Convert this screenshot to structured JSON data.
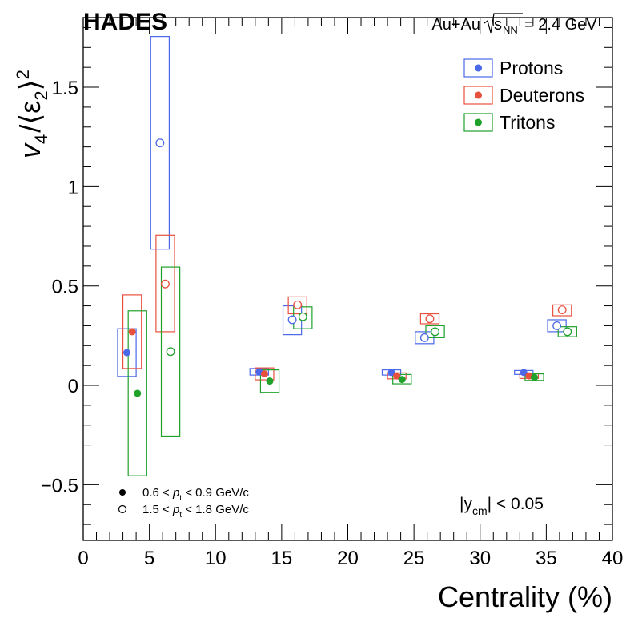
{
  "chart_data": {
    "type": "scatter",
    "experiment": "HADES",
    "system": "Au+Au",
    "energy_label": "= 2.4 GeV",
    "energy_symbol": "s",
    "energy_sub": "NN",
    "xlabel": "Centrality (%)",
    "ylabel_parts": {
      "v": "v",
      "v_sub": "4",
      "slash": "/",
      "eps": "⟨ε",
      "eps_sub": "2",
      "close": "⟩",
      "sup": "2"
    },
    "xlim": [
      0,
      40
    ],
    "ylim": [
      -0.78,
      1.85
    ],
    "x_ticks": [
      0,
      5,
      10,
      15,
      20,
      25,
      30,
      35,
      40
    ],
    "x_tick_labels": [
      "0",
      "5",
      "10",
      "15",
      "20",
      "25",
      "30",
      "35",
      "40"
    ],
    "y_ticks": [
      -0.5,
      0,
      0.5,
      1,
      1.5
    ],
    "y_tick_labels": [
      "−0.5",
      "0",
      "0.5",
      "1",
      "1.5"
    ],
    "rapidity_label": "|y",
    "rapidity_sub": "cm",
    "rapidity_rest": "| < 0.05",
    "pt_legend": [
      {
        "marker": "filled",
        "low": "0.6 < ",
        "var": "p",
        "sub": "t",
        "high": " < 0.9 GeV/c"
      },
      {
        "marker": "open",
        "low": "1.5 < ",
        "var": "p",
        "sub": "t",
        "high": " < 1.8 GeV/c"
      }
    ],
    "legend_position": "top-right",
    "series": [
      {
        "name": "Protons",
        "color": "#4a68e8",
        "low_pt": [
          {
            "x": 3.3,
            "y": 0.165,
            "sys_low": 0.045,
            "sys_high": 0.285
          },
          {
            "x": 13.3,
            "y": 0.068,
            "sys_low": 0.052,
            "sys_high": 0.085
          },
          {
            "x": 23.3,
            "y": 0.065,
            "sys_low": 0.052,
            "sys_high": 0.078
          },
          {
            "x": 33.3,
            "y": 0.065,
            "sys_low": 0.055,
            "sys_high": 0.075
          }
        ],
        "high_pt": [
          {
            "x": 5.8,
            "y": 1.22,
            "sys_low": 0.685,
            "sys_high": 1.755
          },
          {
            "x": 15.8,
            "y": 0.33,
            "sys_low": 0.255,
            "sys_high": 0.4
          },
          {
            "x": 25.8,
            "y": 0.24,
            "sys_low": 0.21,
            "sys_high": 0.27
          },
          {
            "x": 35.8,
            "y": 0.3,
            "sys_low": 0.27,
            "sys_high": 0.33
          }
        ]
      },
      {
        "name": "Deuterons",
        "color": "#e8503e",
        "low_pt": [
          {
            "x": 3.7,
            "y": 0.27,
            "sys_low": 0.085,
            "sys_high": 0.455
          },
          {
            "x": 13.7,
            "y": 0.058,
            "sys_low": 0.028,
            "sys_high": 0.088
          },
          {
            "x": 23.7,
            "y": 0.048,
            "sys_low": 0.033,
            "sys_high": 0.063
          },
          {
            "x": 33.7,
            "y": 0.048,
            "sys_low": 0.035,
            "sys_high": 0.061
          }
        ],
        "high_pt": [
          {
            "x": 6.2,
            "y": 0.51,
            "sys_low": 0.27,
            "sys_high": 0.755
          },
          {
            "x": 16.2,
            "y": 0.405,
            "sys_low": 0.36,
            "sys_high": 0.445
          },
          {
            "x": 26.2,
            "y": 0.335,
            "sys_low": 0.31,
            "sys_high": 0.36
          },
          {
            "x": 36.2,
            "y": 0.38,
            "sys_low": 0.35,
            "sys_high": 0.405
          }
        ]
      },
      {
        "name": "Tritons",
        "color": "#1fa12a",
        "low_pt": [
          {
            "x": 4.1,
            "y": -0.04,
            "sys_low": -0.455,
            "sys_high": 0.375
          },
          {
            "x": 14.1,
            "y": 0.022,
            "sys_low": -0.035,
            "sys_high": 0.078
          },
          {
            "x": 24.1,
            "y": 0.03,
            "sys_low": 0.008,
            "sys_high": 0.055
          },
          {
            "x": 34.1,
            "y": 0.04,
            "sys_low": 0.025,
            "sys_high": 0.058
          }
        ],
        "high_pt": [
          {
            "x": 6.6,
            "y": 0.17,
            "sys_low": -0.255,
            "sys_high": 0.595
          },
          {
            "x": 16.6,
            "y": 0.345,
            "sys_low": 0.285,
            "sys_high": 0.395
          },
          {
            "x": 26.6,
            "y": 0.27,
            "sys_low": 0.24,
            "sys_high": 0.3
          },
          {
            "x": 36.6,
            "y": 0.27,
            "sys_low": 0.245,
            "sys_high": 0.295
          }
        ]
      }
    ]
  }
}
